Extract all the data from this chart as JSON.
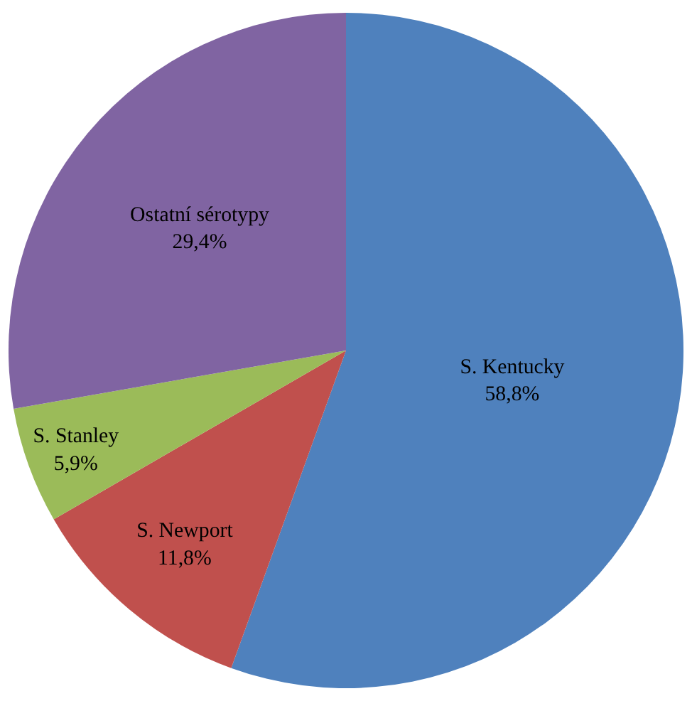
{
  "chart_data": {
    "type": "pie",
    "categories": [
      "S. Kentucky",
      "S. Newport",
      "S. Stanley",
      "Ostatní sérotypy"
    ],
    "values": [
      58.8,
      11.8,
      5.9,
      29.4
    ],
    "value_labels": [
      "58,8%",
      "11,8%",
      "5,9%",
      "29,4%"
    ],
    "colors": [
      "#4f81bd",
      "#c0504d",
      "#9bbb59",
      "#8064a2"
    ],
    "legend": false
  }
}
